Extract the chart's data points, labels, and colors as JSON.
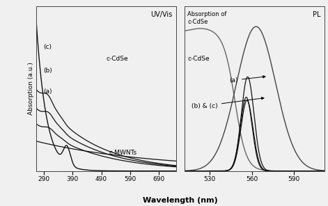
{
  "uv_xlim": [
    263,
    750
  ],
  "uv_xticks": [
    290,
    390,
    490,
    590,
    690
  ],
  "pl_xlim": [
    512,
    612
  ],
  "pl_xticks": [
    530,
    560,
    590
  ],
  "ylabel": "Absorption (a.u.)",
  "xlabel": "Wavelength (nm)",
  "uv_label": "UV/Vis",
  "pl_label": "PL",
  "bg_color": "#f0f0f0",
  "line_color": "#111111"
}
